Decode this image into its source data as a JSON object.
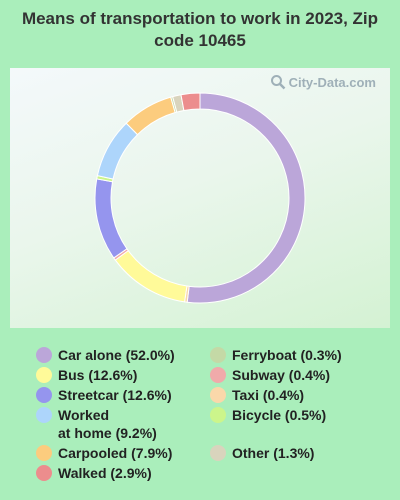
{
  "chart_data": {
    "type": "pie",
    "donut": true,
    "title": "Means of transportation to work in 2023, Zip code 10465",
    "watermark": "City-Data.com",
    "legend_position": "bottom",
    "slices": [
      {
        "label": "Car alone",
        "value": 52.0,
        "display": "Car alone (52.0%)",
        "color": "#bba6d9"
      },
      {
        "label": "Bus",
        "value": 12.6,
        "display": "Bus (12.6%)",
        "color": "#fffa99"
      },
      {
        "label": "Streetcar",
        "value": 12.6,
        "display": "Streetcar (12.6%)",
        "color": "#9595ee"
      },
      {
        "label": "Worked at home",
        "value": 9.2,
        "display_line1": "Worked",
        "display_line2": "at home (9.2%)",
        "color": "#add5fb"
      },
      {
        "label": "Carpooled",
        "value": 7.9,
        "display": "Carpooled (7.9%)",
        "color": "#fccc7e"
      },
      {
        "label": "Walked",
        "value": 2.9,
        "display": "Walked (2.9%)",
        "color": "#ec8d8d"
      },
      {
        "label": "Ferryboat",
        "value": 0.3,
        "display": "Ferryboat (0.3%)",
        "color": "#c4d9a6"
      },
      {
        "label": "Subway",
        "value": 0.4,
        "display": "Subway (0.4%)",
        "color": "#f0aaaa"
      },
      {
        "label": "Taxi",
        "value": 0.4,
        "display": "Taxi (0.4%)",
        "color": "#fad8aa"
      },
      {
        "label": "Bicycle",
        "value": 0.5,
        "display": "Bicycle (0.5%)",
        "color": "#ccf58b"
      },
      {
        "label": "Other",
        "value": 1.3,
        "display": "Other (1.3%)",
        "color": "#d9d4bd"
      }
    ],
    "draw_order": [
      "Car alone",
      "Taxi",
      "Bus",
      "Subway",
      "Streetcar",
      "Bicycle",
      "Worked at home",
      "Carpooled",
      "Ferryboat",
      "Other",
      "Walked"
    ]
  }
}
